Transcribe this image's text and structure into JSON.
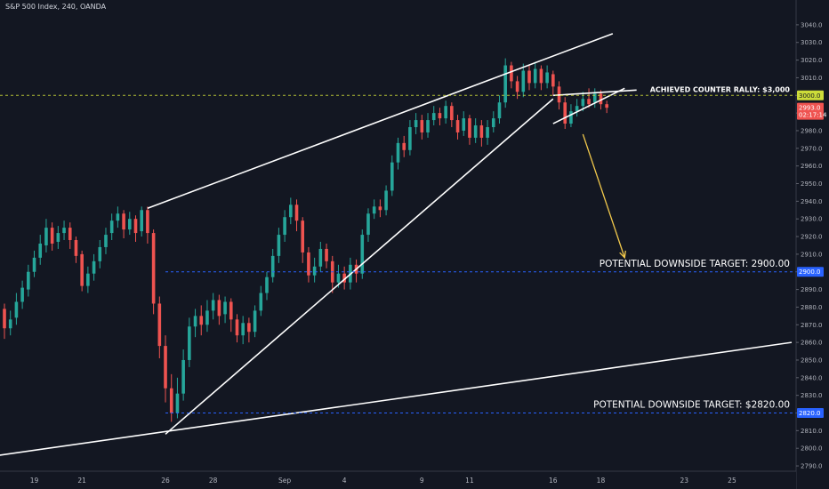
{
  "header": {
    "title": "S&P 500 Index, 240, OANDA"
  },
  "colors": {
    "background": "#131722",
    "up": "#26a69a",
    "down": "#ef5350",
    "trendline": "#ffffff",
    "arrow": "#f2c94c",
    "level_line": "#2962ff",
    "rally_line": "#cddc39",
    "axis_text": "#b2b5be"
  },
  "chart_data": {
    "type": "candlestick",
    "ylim": [
      2787,
      3047
    ],
    "y_ticks": [
      2790,
      2800,
      2810,
      2820,
      2830,
      2840,
      2850,
      2860,
      2870,
      2880,
      2890,
      2900,
      2910,
      2920,
      2930,
      2940,
      2950,
      2960,
      2970,
      2980,
      2990,
      3000,
      3010,
      3020,
      3030,
      3040
    ],
    "y_tick_labels": [
      "2790.0",
      "2800.0",
      "2810.0",
      "2820.0",
      "2830.0",
      "2840.0",
      "2850.0",
      "2860.0",
      "2870.0",
      "2880.0",
      "2890.0",
      "2900.0",
      "2910.0",
      "2920.0",
      "2930.0",
      "2940.0",
      "2950.0",
      "2960.0",
      "2970.0",
      "2980.0",
      "2990.0",
      "3000.0",
      "3010.0",
      "3020.0",
      "3030.0",
      "3040.0"
    ],
    "x_range": [
      0,
      132
    ],
    "x_ticks": [
      {
        "label": "19",
        "x": 5
      },
      {
        "label": "21",
        "x": 13
      },
      {
        "label": "26",
        "x": 27
      },
      {
        "label": "28",
        "x": 35
      },
      {
        "label": "Sep",
        "x": 47
      },
      {
        "label": "4",
        "x": 57
      },
      {
        "label": "9",
        "x": 70
      },
      {
        "label": "11",
        "x": 78
      },
      {
        "label": "16",
        "x": 92
      },
      {
        "label": "18",
        "x": 100
      },
      {
        "label": "23",
        "x": 114
      },
      {
        "label": "25",
        "x": 122
      }
    ],
    "candles": [
      [
        2879,
        2868,
        2882,
        2862
      ],
      [
        2868,
        2873,
        2878,
        2864
      ],
      [
        2874,
        2883,
        2888,
        2870
      ],
      [
        2883,
        2891,
        2895,
        2879
      ],
      [
        2890,
        2900,
        2904,
        2886
      ],
      [
        2900,
        2908,
        2912,
        2897
      ],
      [
        2908,
        2916,
        2921,
        2904
      ],
      [
        2915,
        2925,
        2930,
        2911
      ],
      [
        2925,
        2916,
        2928,
        2912
      ],
      [
        2917,
        2922,
        2926,
        2913
      ],
      [
        2922,
        2925,
        2929,
        2918
      ],
      [
        2925,
        2918,
        2928,
        2913
      ],
      [
        2918,
        2909,
        2920,
        2905
      ],
      [
        2910,
        2892,
        2912,
        2889
      ],
      [
        2892,
        2899,
        2903,
        2888
      ],
      [
        2899,
        2906,
        2910,
        2895
      ],
      [
        2906,
        2914,
        2918,
        2902
      ],
      [
        2914,
        2921,
        2925,
        2910
      ],
      [
        2922,
        2929,
        2933,
        2918
      ],
      [
        2929,
        2933,
        2937,
        2925
      ],
      [
        2933,
        2924,
        2935,
        2919
      ],
      [
        2924,
        2930,
        2934,
        2921
      ],
      [
        2930,
        2922,
        2932,
        2917
      ],
      [
        2923,
        2935,
        2937,
        2920
      ],
      [
        2935,
        2922,
        2937,
        2916
      ],
      [
        2922,
        2882,
        2924,
        2876
      ],
      [
        2882,
        2858,
        2886,
        2851
      ],
      [
        2858,
        2834,
        2864,
        2826
      ],
      [
        2834,
        2820,
        2842,
        2815
      ],
      [
        2820,
        2831,
        2840,
        2817
      ],
      [
        2831,
        2850,
        2856,
        2827
      ],
      [
        2850,
        2869,
        2874,
        2846
      ],
      [
        2869,
        2875,
        2879,
        2863
      ],
      [
        2875,
        2870,
        2881,
        2864
      ],
      [
        2870,
        2878,
        2884,
        2866
      ],
      [
        2878,
        2884,
        2888,
        2873
      ],
      [
        2884,
        2875,
        2887,
        2870
      ],
      [
        2876,
        2883,
        2886,
        2871
      ],
      [
        2883,
        2873,
        2885,
        2866
      ],
      [
        2873,
        2864,
        2876,
        2860
      ],
      [
        2864,
        2871,
        2875,
        2859
      ],
      [
        2871,
        2866,
        2874,
        2860
      ],
      [
        2866,
        2878,
        2881,
        2863
      ],
      [
        2878,
        2888,
        2892,
        2875
      ],
      [
        2888,
        2897,
        2900,
        2884
      ],
      [
        2897,
        2909,
        2913,
        2894
      ],
      [
        2909,
        2921,
        2925,
        2905
      ],
      [
        2921,
        2931,
        2935,
        2917
      ],
      [
        2931,
        2938,
        2942,
        2927
      ],
      [
        2938,
        2929,
        2941,
        2923
      ],
      [
        2929,
        2911,
        2931,
        2905
      ],
      [
        2911,
        2898,
        2914,
        2894
      ],
      [
        2898,
        2903,
        2908,
        2894
      ],
      [
        2903,
        2913,
        2917,
        2900
      ],
      [
        2913,
        2906,
        2916,
        2902
      ],
      [
        2906,
        2894,
        2909,
        2888
      ],
      [
        2894,
        2899,
        2904,
        2891
      ],
      [
        2899,
        2894,
        2903,
        2890
      ],
      [
        2894,
        2904,
        2908,
        2890
      ],
      [
        2904,
        2899,
        2907,
        2894
      ],
      [
        2899,
        2921,
        2924,
        2896
      ],
      [
        2921,
        2933,
        2936,
        2917
      ],
      [
        2933,
        2937,
        2941,
        2930
      ],
      [
        2937,
        2935,
        2941,
        2931
      ],
      [
        2935,
        2946,
        2949,
        2932
      ],
      [
        2946,
        2962,
        2966,
        2943
      ],
      [
        2962,
        2973,
        2976,
        2958
      ],
      [
        2973,
        2969,
        2977,
        2965
      ],
      [
        2969,
        2982,
        2986,
        2966
      ],
      [
        2982,
        2986,
        2990,
        2978
      ],
      [
        2986,
        2979,
        2989,
        2975
      ],
      [
        2979,
        2986,
        2990,
        2976
      ],
      [
        2986,
        2990,
        2994,
        2983
      ],
      [
        2990,
        2987,
        2993,
        2983
      ],
      [
        2987,
        2994,
        2997,
        2984
      ],
      [
        2994,
        2986,
        2996,
        2982
      ],
      [
        2986,
        2979,
        2989,
        2975
      ],
      [
        2980,
        2987,
        2991,
        2977
      ],
      [
        2987,
        2976,
        2989,
        2972
      ],
      [
        2976,
        2983,
        2987,
        2973
      ],
      [
        2983,
        2976,
        2986,
        2971
      ],
      [
        2976,
        2982,
        2986,
        2972
      ],
      [
        2982,
        2987,
        2991,
        2979
      ],
      [
        2987,
        2996,
        3000,
        2984
      ],
      [
        2996,
        3017,
        3021,
        2993
      ],
      [
        3017,
        3008,
        3019,
        3004
      ],
      [
        3008,
        3002,
        3011,
        2998
      ],
      [
        3002,
        3014,
        3018,
        2999
      ],
      [
        3014,
        3007,
        3017,
        3003
      ],
      [
        3007,
        3015,
        3019,
        3004
      ],
      [
        3015,
        3007,
        3017,
        3003
      ],
      [
        3007,
        3013,
        3017,
        3004
      ],
      [
        3012,
        3005,
        3014,
        3000
      ],
      [
        3005,
        2996,
        3008,
        2992
      ],
      [
        2996,
        2984,
        2999,
        2981
      ],
      [
        2984,
        2991,
        2995,
        2982
      ],
      [
        2991,
        2994,
        2998,
        2988
      ],
      [
        2994,
        2998,
        3002,
        2991
      ],
      [
        2998,
        2995,
        3004,
        2993
      ],
      [
        2996,
        3001,
        3004,
        2993
      ],
      [
        3001,
        2995,
        3003,
        2992
      ],
      [
        2995,
        2993,
        2997,
        2990
      ]
    ],
    "horizontal_levels": [
      {
        "value": 3000,
        "label": "3000.0",
        "style": "rally"
      },
      {
        "value": 2900,
        "label": "2900.0",
        "style": "target"
      },
      {
        "value": 2820,
        "label": "2820.0",
        "style": "target"
      }
    ],
    "trendlines": [
      {
        "from": [
          24,
          2936
        ],
        "to": [
          102,
          3035
        ]
      },
      {
        "from": [
          27,
          2808
        ],
        "to": [
          92,
          2998
        ]
      },
      {
        "from": [
          -1,
          2796
        ],
        "to": [
          132,
          2860
        ]
      },
      {
        "from": [
          92,
          2984
        ],
        "to": [
          104,
          3004
        ]
      },
      {
        "from": [
          92,
          3000
        ],
        "to": [
          106,
          3003
        ]
      }
    ],
    "annotations": [
      {
        "text": "ACHIEVED COUNTER RALLY: $3,000",
        "value": 3001
      },
      {
        "text": "POTENTIAL DOWNSIDE TARGET: 2900.00",
        "value": 2902
      },
      {
        "text": "POTENTIAL DOWNSIDE TARGET: $2820.00",
        "value": 2822
      }
    ],
    "countdown": "02:17:14",
    "arrow": {
      "from": [
        97,
        2978
      ],
      "to": [
        104,
        2908
      ]
    }
  }
}
